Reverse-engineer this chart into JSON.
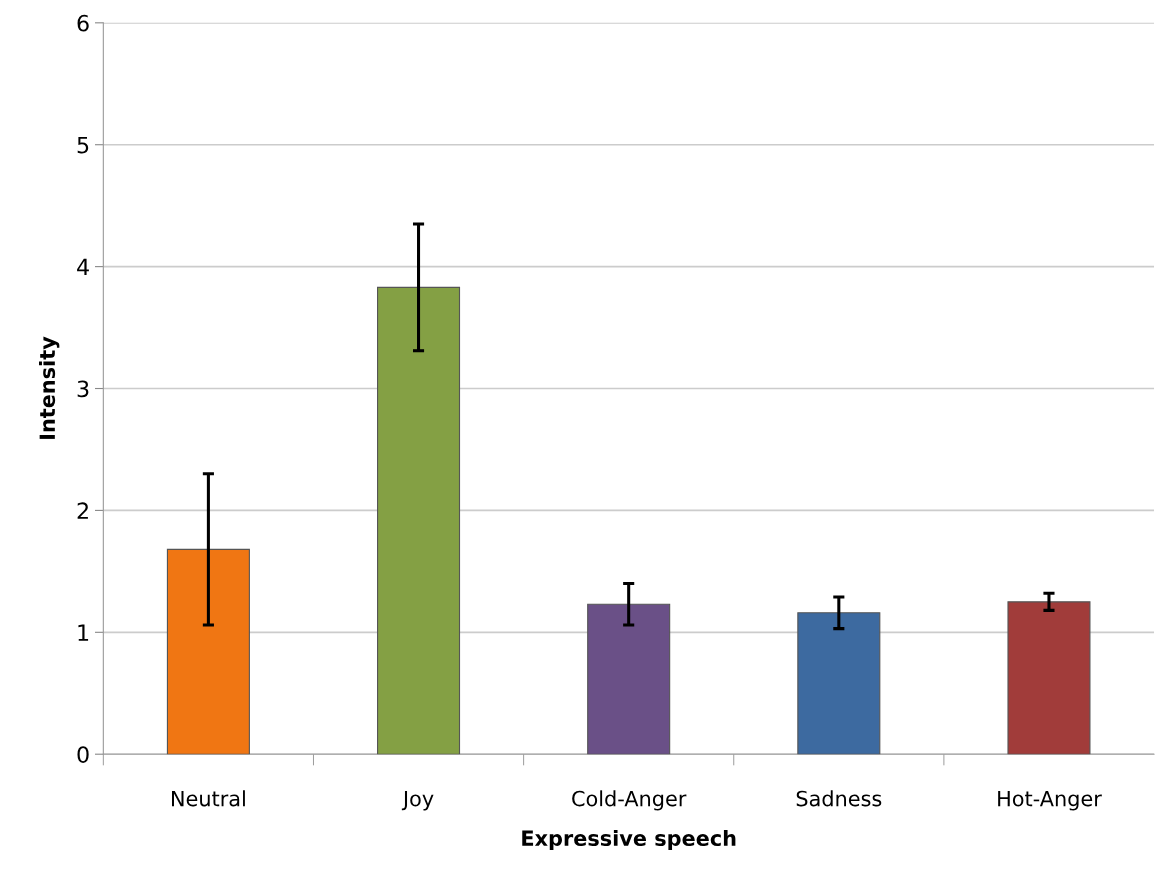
{
  "chart_data": {
    "type": "bar",
    "xlabel": "Expressive speech",
    "ylabel": "Intensity",
    "categories": [
      "Neutral",
      "Joy",
      "Cold-Anger",
      "Sadness",
      "Hot-Anger"
    ],
    "values": [
      1.68,
      3.83,
      1.23,
      1.16,
      1.25
    ],
    "errors": [
      0.62,
      0.52,
      0.17,
      0.13,
      0.07
    ],
    "colors": [
      "#f07613",
      "#84a044",
      "#6a5087",
      "#3d6aa0",
      "#a13c3a"
    ],
    "ylim": [
      0,
      6
    ],
    "yticks": [
      0,
      1,
      2,
      3,
      4,
      5,
      6
    ],
    "grid": "y"
  }
}
